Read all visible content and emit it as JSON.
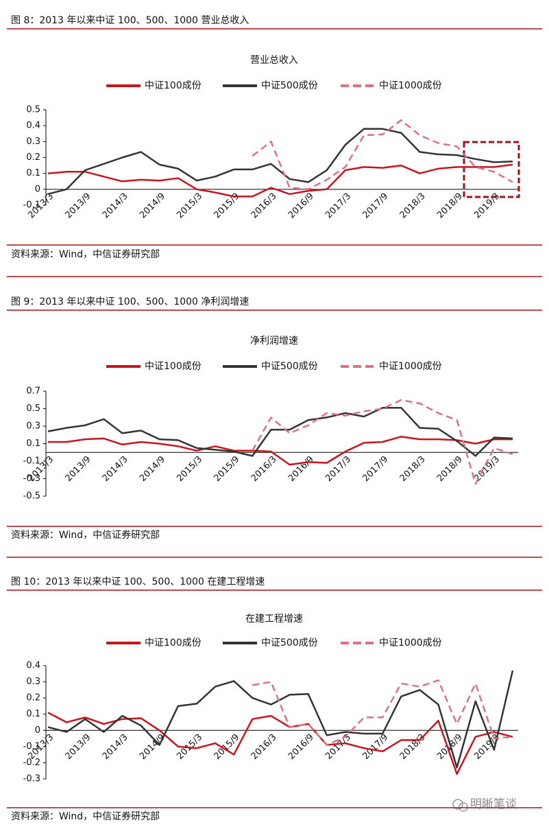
{
  "chart_data": [
    {
      "type": "line",
      "caption": "图 8：2013 年以来中证 100、500、1000 营业总收入",
      "title": "营业总收入",
      "source": "资料来源：Wind，中信证券研究部",
      "categories": [
        "2013/3",
        null,
        "2013/9",
        null,
        "2014/3",
        null,
        "2014/9",
        null,
        "2015/3",
        null,
        "2015/9",
        null,
        "2016/3",
        null,
        "2016/9",
        null,
        "2017/3",
        null,
        "2017/9",
        null,
        "2018/3",
        null,
        "2018/9",
        null,
        "2019/3",
        null
      ],
      "ylim": [
        -0.1,
        0.5
      ],
      "yticks": [
        -0.1,
        0,
        0.1,
        0.2,
        0.3,
        0.4,
        0.5
      ],
      "series": [
        {
          "name": "中证100成份",
          "color": "#c8141e",
          "style": "solid",
          "values": [
            0.1,
            0.11,
            0.11,
            0.08,
            0.05,
            0.06,
            0.055,
            0.07,
            0.0,
            -0.02,
            -0.045,
            -0.045,
            0.01,
            -0.03,
            -0.01,
            0.0,
            0.12,
            0.14,
            0.135,
            0.15,
            0.1,
            0.13,
            0.14,
            0.14,
            0.14,
            0.155
          ]
        },
        {
          "name": "中证500成份",
          "color": "#333333",
          "style": "solid",
          "values": [
            -0.03,
            0.0,
            0.12,
            0.16,
            0.2,
            0.235,
            0.155,
            0.13,
            0.055,
            0.08,
            0.125,
            0.125,
            0.16,
            0.065,
            0.045,
            0.12,
            0.28,
            0.38,
            0.38,
            0.355,
            0.235,
            0.22,
            0.215,
            0.19,
            0.17,
            0.175
          ]
        },
        {
          "name": "中证1000成份",
          "color": "#e07080",
          "style": "dashed",
          "values": [
            null,
            null,
            null,
            null,
            null,
            null,
            null,
            null,
            null,
            null,
            null,
            0.21,
            0.3,
            0.01,
            0.0,
            0.06,
            0.14,
            0.34,
            0.345,
            0.435,
            0.34,
            0.29,
            0.27,
            0.14,
            0.11,
            0.045
          ]
        }
      ]
    },
    {
      "type": "line",
      "caption": "图 9：2013 年以来中证 100、500、1000 净利润增速",
      "title": "净利润增速",
      "source": "资料来源：Wind，中信证券研究部",
      "categories": [
        "2013/3",
        null,
        "2013/9",
        null,
        "2014/3",
        null,
        "2014/9",
        null,
        "2015/3",
        null,
        "2015/9",
        null,
        "2016/3",
        null,
        "2016/9",
        null,
        "2017/3",
        null,
        "2017/9",
        null,
        "2018/3",
        null,
        "2018/9",
        null,
        "2019/3",
        null
      ],
      "ylim": [
        -0.5,
        0.7
      ],
      "yticks": [
        -0.5,
        -0.3,
        -0.1,
        0.1,
        0.3,
        0.5,
        0.7
      ],
      "series": [
        {
          "name": "中证100成份",
          "color": "#c8141e",
          "style": "solid",
          "values": [
            0.12,
            0.12,
            0.15,
            0.16,
            0.09,
            0.12,
            0.1,
            0.07,
            0.02,
            0.07,
            0.02,
            0.02,
            0.01,
            -0.14,
            -0.11,
            -0.12,
            0.01,
            0.11,
            0.12,
            0.18,
            0.15,
            0.15,
            0.14,
            0.1,
            0.15,
            0.15
          ]
        },
        {
          "name": "中证500成份",
          "color": "#333333",
          "style": "solid",
          "values": [
            0.24,
            0.28,
            0.31,
            0.38,
            0.22,
            0.25,
            0.15,
            0.14,
            0.05,
            0.03,
            0.01,
            -0.04,
            0.26,
            0.26,
            0.37,
            0.4,
            0.45,
            0.41,
            0.51,
            0.51,
            0.28,
            0.27,
            0.13,
            -0.04,
            0.17,
            0.16
          ]
        },
        {
          "name": "中证1000成份",
          "color": "#e07080",
          "style": "dashed",
          "values": [
            null,
            null,
            null,
            null,
            null,
            null,
            null,
            null,
            null,
            null,
            null,
            0.02,
            0.4,
            0.22,
            0.31,
            0.45,
            0.42,
            0.47,
            0.5,
            0.6,
            0.56,
            0.45,
            0.37,
            -0.36,
            0.05,
            -0.02
          ]
        }
      ]
    },
    {
      "type": "line",
      "caption": "图 10：2013 年以来中证 100、500、1000 在建工程增速",
      "title": "在建工程增速",
      "source": "资料来源：Wind，中信证券研究部",
      "categories": [
        "2013/3",
        null,
        "2013/9",
        null,
        "2014/3",
        null,
        "2014/9",
        null,
        "2015/3",
        null,
        "2015/9",
        null,
        "2016/3",
        null,
        "2016/9",
        null,
        "2017/3",
        null,
        "2017/9",
        null,
        "2018/3",
        null,
        "2018/9",
        null,
        "2019/3",
        null
      ],
      "ylim": [
        -0.3,
        0.4
      ],
      "yticks": [
        -0.3,
        -0.2,
        -0.1,
        0,
        0.1,
        0.2,
        0.3,
        0.4
      ],
      "series": [
        {
          "name": "中证100成份",
          "color": "#c8141e",
          "style": "solid",
          "values": [
            0.11,
            0.05,
            0.08,
            0.04,
            0.07,
            0.075,
            0.0,
            -0.1,
            -0.11,
            -0.08,
            -0.15,
            0.07,
            0.09,
            0.02,
            0.04,
            -0.09,
            -0.08,
            -0.11,
            -0.13,
            -0.06,
            -0.06,
            0.06,
            -0.27,
            -0.04,
            -0.01,
            -0.04
          ]
        },
        {
          "name": "中证500成份",
          "color": "#333333",
          "style": "solid",
          "values": [
            0.02,
            -0.01,
            0.07,
            -0.01,
            0.09,
            0.03,
            -0.09,
            0.15,
            0.165,
            0.27,
            0.305,
            0.2,
            0.16,
            0.22,
            0.225,
            -0.03,
            -0.01,
            -0.02,
            -0.02,
            0.21,
            0.25,
            0.16,
            -0.23,
            0.18,
            -0.12,
            0.37
          ]
        },
        {
          "name": "中证1000成份",
          "color": "#e07080",
          "style": "dashed",
          "values": [
            null,
            null,
            null,
            null,
            null,
            null,
            null,
            null,
            null,
            null,
            null,
            0.28,
            0.3,
            0.02,
            0.04,
            -0.09,
            -0.04,
            0.08,
            0.08,
            0.29,
            0.27,
            0.31,
            0.04,
            0.29,
            -0.05,
            -0.04
          ]
        }
      ]
    }
  ],
  "watermark": "明晰笔谈"
}
